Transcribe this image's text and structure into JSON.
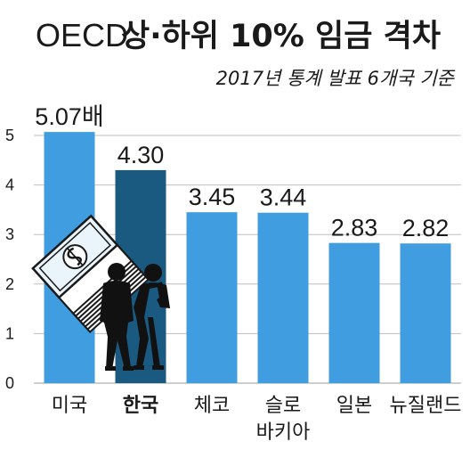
{
  "header": {
    "title_prefix": "OECD",
    "title_main": "상·하위 10% 임금 격차",
    "subtitle": "2017년 통계 발표 6개국 기준"
  },
  "colors": {
    "bar": "#3f9de0",
    "highlight": "#1b5a80",
    "grid": "#bfbfbf",
    "text": "#1a1a1a"
  },
  "illustration": {
    "description_icon": "money-stack-and-businessmen-icon"
  },
  "chart_data": {
    "type": "bar",
    "categories": [
      "미국",
      "한국",
      "체코",
      "슬로\n바키아",
      "일본",
      "뉴질랜드"
    ],
    "values": [
      5.07,
      4.3,
      3.45,
      3.44,
      2.83,
      2.82
    ],
    "value_labels": [
      "5.07배",
      "4.30",
      "3.45",
      "3.44",
      "2.83",
      "2.82"
    ],
    "highlight_index": 1,
    "title": "OECD 상·하위 10% 임금 격차",
    "subtitle": "2017년 통계 발표 6개국 기준",
    "xlabel": "",
    "ylabel": "",
    "ylim": [
      0,
      5
    ],
    "yticks": [
      0,
      1,
      2,
      3,
      4,
      5
    ],
    "grid": true,
    "legend": "none"
  }
}
